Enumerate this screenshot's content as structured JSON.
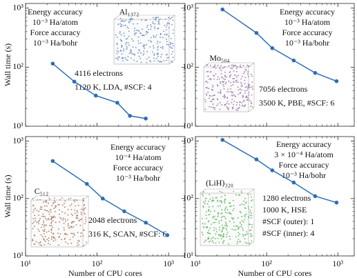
{
  "chart_data": [
    {
      "type": "line",
      "log_x": true,
      "log_y": true,
      "ylabel": "Wall time (s)",
      "x": [
        24,
        48,
        96,
        192,
        288,
        480
      ],
      "series": [
        {
          "color": "#2e6db4",
          "values": [
            115,
            57,
            33,
            25,
            15,
            13.5
          ]
        }
      ],
      "xlim": [
        10,
        1700
      ],
      "ylim": [
        10,
        1200
      ],
      "xticks": [
        10,
        100,
        1000
      ],
      "yticks": [
        {
          "value": 10,
          "label": "10¹"
        },
        {
          "value": 100,
          "label": "10²"
        },
        {
          "value": 1000,
          "label": "10³"
        }
      ],
      "accuracy": [
        "Energy accuracy",
        "10⁻³ Ha/atom",
        "Force accuracy",
        "10⁻³ Ha/bohr"
      ],
      "structure": "Al₁₃₇₂",
      "structure_color": "#6a8fc8",
      "details": [
        "4116 electrons",
        "1120 K, LDA, #SCF: 4"
      ]
    },
    {
      "type": "line",
      "log_x": true,
      "log_y": true,
      "x": [
        24,
        72,
        120,
        240,
        480,
        960
      ],
      "series": [
        {
          "color": "#2e6db4",
          "values": [
            950,
            380,
            210,
            130,
            80,
            58
          ]
        }
      ],
      "xlim": [
        10,
        1700
      ],
      "ylim": [
        10,
        1200
      ],
      "xticks": [
        10,
        100,
        1000
      ],
      "yticks": [
        {
          "value": 10,
          "label": "10¹"
        },
        {
          "value": 100,
          "label": "10²"
        },
        {
          "value": 1000,
          "label": "10³"
        }
      ],
      "accuracy": [
        "Energy accuracy",
        "10⁻³ Ha/atom",
        "Force accuracy",
        "10⁻³ Ha/bohr"
      ],
      "structure": "Mo₅₀₄",
      "structure_color": "#a07ab0",
      "details": [
        "7056 electrons",
        "3500 K, PBE, #SCF: 6"
      ]
    },
    {
      "type": "line",
      "log_x": true,
      "log_y": true,
      "ylabel": "Wall time (s)",
      "xlabel": "Number of CPU cores",
      "x": [
        24,
        72,
        120,
        240,
        480,
        960
      ],
      "series": [
        {
          "color": "#2e6db4",
          "values": [
            450,
            180,
            100,
            60,
            38,
            23
          ]
        }
      ],
      "xlim": [
        10,
        1700
      ],
      "ylim": [
        10,
        1200
      ],
      "xticks": [
        {
          "value": 10,
          "label": "10¹"
        },
        {
          "value": 100,
          "label": "10²"
        },
        {
          "value": 1000,
          "label": "10³"
        }
      ],
      "yticks": [
        {
          "value": 10,
          "label": "10¹"
        },
        {
          "value": 100,
          "label": "10²"
        },
        {
          "value": 1000,
          "label": "10³"
        }
      ],
      "accuracy": [
        "Energy accuracy",
        "10⁻⁴ Ha/atom",
        "Force accuracy",
        "10⁻³ Ha/bohr"
      ],
      "structure": "C₅₁₂",
      "structure_color": "#b07a60",
      "details": [
        "2048 electrons",
        "316 K, SCAN, #SCF: 6"
      ]
    },
    {
      "type": "line",
      "log_x": true,
      "log_y": true,
      "xlabel": "Number of CPU cores",
      "x": [
        24,
        72,
        120,
        240,
        480,
        960
      ],
      "series": [
        {
          "color": "#2e6db4",
          "values": [
            1050,
            480,
            310,
            190,
            110,
            85
          ]
        }
      ],
      "xlim": [
        10,
        1700
      ],
      "ylim": [
        10,
        1200
      ],
      "xticks": [
        {
          "value": 10,
          "label": "10¹"
        },
        {
          "value": 100,
          "label": "10²"
        },
        {
          "value": 1000,
          "label": "10³"
        }
      ],
      "yticks": [
        {
          "value": 10,
          "label": "10¹"
        },
        {
          "value": 100,
          "label": "10²"
        },
        {
          "value": 1000,
          "label": "10³"
        }
      ],
      "accuracy": [
        "Energy accuracy",
        "3 × 10⁻⁴ Ha/atom",
        "Force accuracy",
        "10⁻³ Ha/bohr"
      ],
      "structure": "(LiH)₃₂₀",
      "structure_color": "#5cb85c",
      "details": [
        "1280 electrons",
        "1000 K, HSE",
        "#SCF (outer): 1",
        "#SCF (inner): 4"
      ]
    }
  ]
}
